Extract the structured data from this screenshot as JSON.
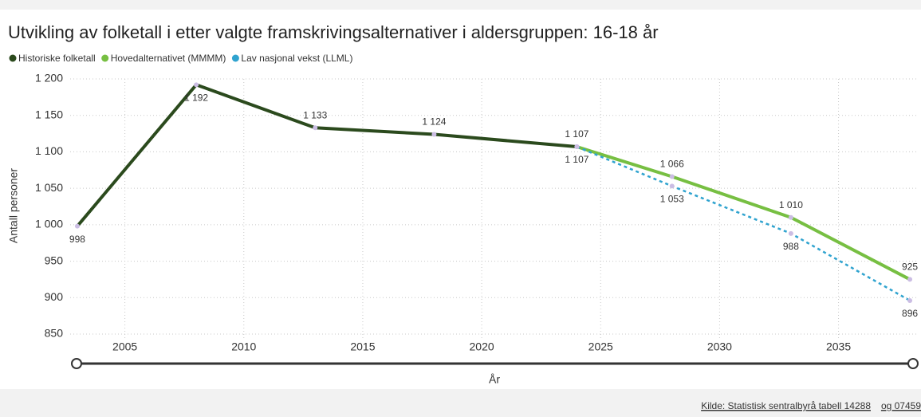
{
  "chart_data": {
    "type": "line",
    "title": "Utvikling av folketall i etter valgte framskrivingsalternativer i aldersgruppen: 16-18 år",
    "xlabel": "År",
    "ylabel": "Antall personer",
    "xlim": [
      2002.7,
      2038.3
    ],
    "ylim": [
      850,
      1200
    ],
    "xticks": [
      2005,
      2010,
      2015,
      2020,
      2025,
      2030,
      2035
    ],
    "yticks": [
      850,
      900,
      950,
      {
        "value": 1000,
        "label": "1 000"
      },
      {
        "value": 1050,
        "label": "1 050"
      },
      {
        "value": 1100,
        "label": "1 100"
      },
      {
        "value": 1150,
        "label": "1 150"
      },
      {
        "value": 1200,
        "label": "1 200"
      }
    ],
    "grid": true,
    "legend": "top-left",
    "series": [
      {
        "name": "Historiske folketall",
        "color": "#2b4a1d",
        "dashed": false,
        "x": [
          2003,
          2008,
          2013,
          2018,
          2024
        ],
        "values": [
          998,
          1192,
          1133,
          1124,
          1107
        ],
        "value_labels": [
          "998",
          "1 192",
          "1 133",
          "1 124",
          "1 107"
        ]
      },
      {
        "name": "Hovedalternativet (MMMM)",
        "color": "#77bf42",
        "dashed": false,
        "x": [
          2024,
          2028,
          2033,
          2038
        ],
        "values": [
          1107,
          1066,
          1010,
          925
        ],
        "value_labels": [
          null,
          "1 066",
          "1 010",
          "925"
        ]
      },
      {
        "name": "Lav nasjonal vekst (LLML)",
        "color": "#2fa3cf",
        "dashed": true,
        "x": [
          2024,
          2028,
          2033,
          2038
        ],
        "values": [
          1107,
          1053,
          988,
          896
        ],
        "value_labels": [
          "1 107",
          "1 053",
          "988",
          "896"
        ]
      }
    ]
  },
  "source_links": [
    "Kilde: Statistisk sentralbyrå tabell 14288",
    "og 07459"
  ]
}
